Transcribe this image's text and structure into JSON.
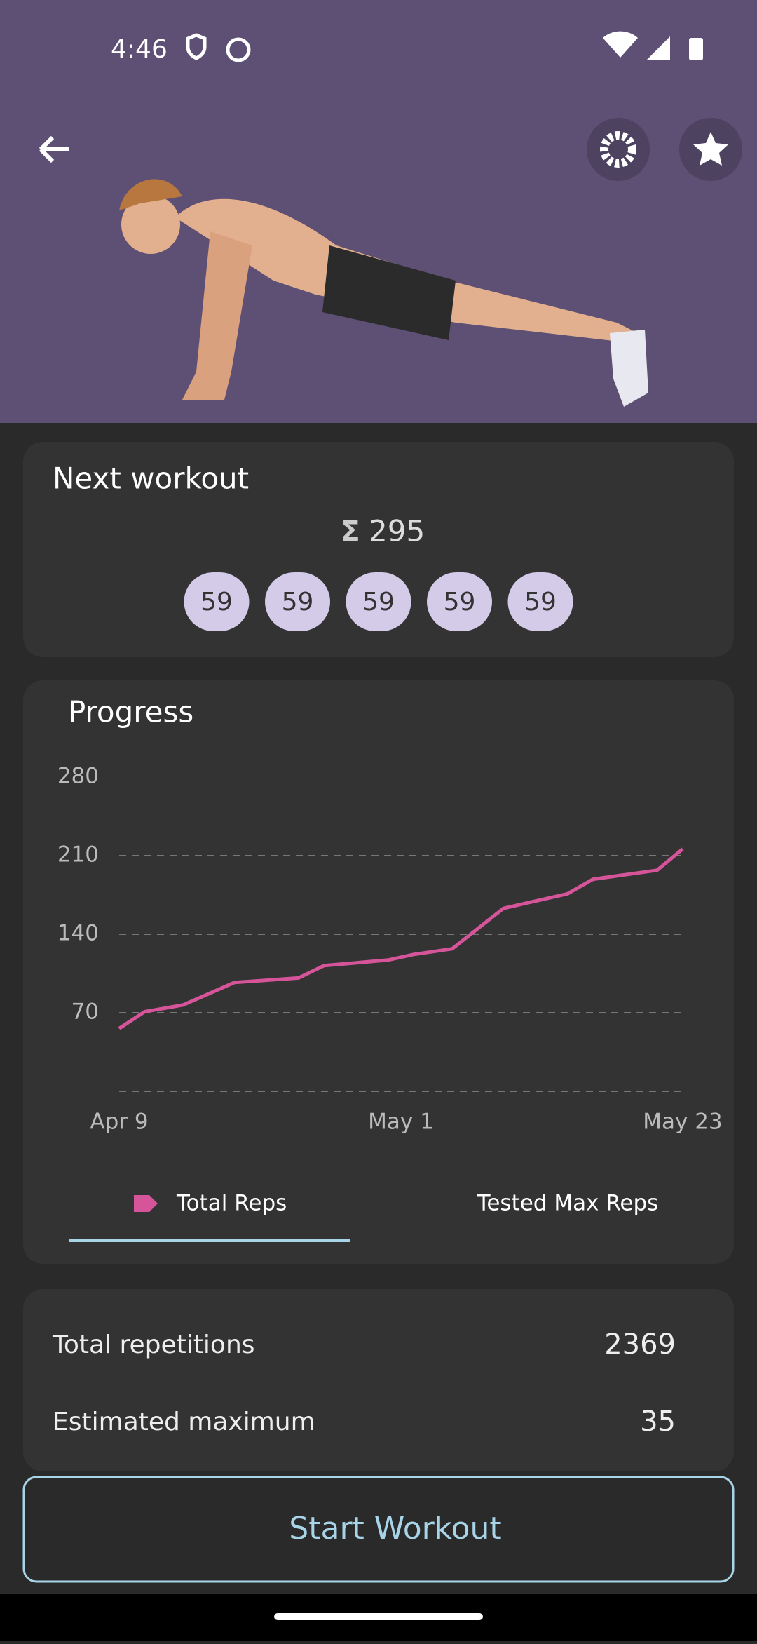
{
  "status_bar": {
    "time": "4:46"
  },
  "next_workout": {
    "title": "Next workout",
    "sum_symbol": "Σ",
    "total": 295,
    "sets": [
      59,
      59,
      59,
      59,
      59
    ]
  },
  "chart_data": {
    "type": "line",
    "title": "Progress",
    "x": [
      "Apr 9",
      "Apr 11",
      "Apr 14",
      "Apr 18",
      "Apr 23",
      "Apr 25",
      "Apr 30",
      "May 2",
      "May 5",
      "May 9",
      "May 14",
      "May 16",
      "May 21",
      "May 23"
    ],
    "series": [
      {
        "name": "Total Reps",
        "color": "#d6559a",
        "values": [
          56,
          71,
          77,
          97,
          101,
          112,
          117,
          122,
          127,
          163,
          176,
          189,
          197,
          216
        ]
      }
    ],
    "xlim": [
      "Apr 9",
      "May 23"
    ],
    "xticks": [
      "Apr 9",
      "May 1",
      "May 23"
    ],
    "ylim": [
      0,
      280
    ],
    "yticks": [
      70,
      140,
      210,
      280
    ],
    "grid": true,
    "second_tab": "Tested Max Reps"
  },
  "stats": [
    {
      "label": "Total repetitions",
      "value": 2369
    },
    {
      "label": "Estimated maximum",
      "value": 35
    }
  ],
  "button": "Start Workout"
}
